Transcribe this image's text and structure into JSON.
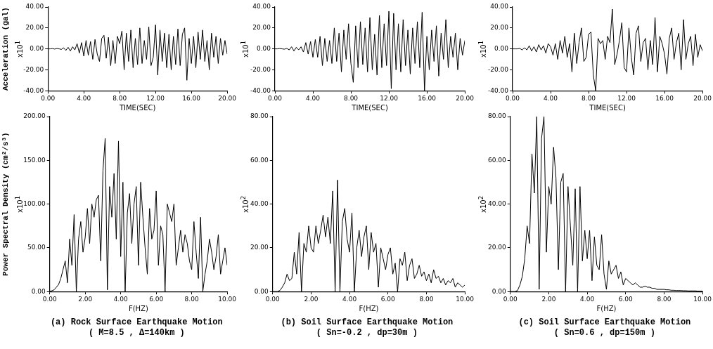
{
  "chart_data": [
    {
      "type": "line",
      "xlabel": "TIME(SEC)",
      "ylabel": "Acceleration (gal)",
      "annotations": [
        "x10$^{1}$"
      ],
      "xlim": [
        0,
        20
      ],
      "ylim": [
        -40,
        40
      ],
      "xticks": [
        {
          "value": 0,
          "label": "0.00"
        },
        {
          "value": 4,
          "label": "4.00"
        },
        {
          "value": 8,
          "label": "8.00"
        },
        {
          "value": 12,
          "label": "12.00"
        },
        {
          "value": 16,
          "label": "16.00"
        },
        {
          "value": 20,
          "label": "20.00"
        }
      ],
      "yticks": [
        {
          "value": -40,
          "label": "-40.00"
        },
        {
          "value": -20,
          "label": "-20.00"
        },
        {
          "value": 0,
          "label": "0.00"
        },
        {
          "value": 20,
          "label": "20.00"
        },
        {
          "value": 40,
          "label": "40.00"
        }
      ],
      "x": [
        0,
        0.25,
        0.5,
        0.75,
        1,
        1.25,
        1.5,
        1.75,
        2,
        2.25,
        2.5,
        2.75,
        3,
        3.25,
        3.5,
        3.75,
        4,
        4.25,
        4.5,
        4.75,
        5,
        5.25,
        5.5,
        5.75,
        6,
        6.25,
        6.5,
        6.75,
        7,
        7.25,
        7.5,
        7.75,
        8,
        8.25,
        8.5,
        8.75,
        9,
        9.25,
        9.5,
        9.75,
        10,
        10.25,
        10.5,
        10.75,
        11,
        11.25,
        11.5,
        11.75,
        12,
        12.25,
        12.5,
        12.75,
        13,
        13.25,
        13.5,
        13.75,
        14,
        14.25,
        14.5,
        14.75,
        15,
        15.25,
        15.5,
        15.75,
        16,
        16.25,
        16.5,
        16.75,
        17,
        17.25,
        17.5,
        17.75,
        18,
        18.25,
        18.5,
        18.75,
        19,
        19.25,
        19.5,
        19.75,
        20
      ],
      "series": [
        {
          "color": "#000000",
          "values": [
            0,
            0,
            0.3,
            -0.2,
            0.4,
            0,
            -0.5,
            1,
            -1.5,
            1.5,
            -2,
            2,
            -1,
            5,
            -4,
            6,
            -7,
            8,
            -6,
            7,
            -10,
            9,
            -5,
            -12,
            10,
            13,
            -9,
            11,
            -16,
            8,
            -14,
            12,
            5,
            17,
            -20,
            15,
            -12,
            18,
            -18,
            10,
            -15,
            20,
            -14,
            8,
            -10,
            21,
            -16,
            -8,
            23,
            -25,
            18,
            -12,
            15,
            -18,
            14,
            -20,
            12,
            -15,
            19,
            -16,
            14,
            20,
            -30,
            10,
            -14,
            12,
            -18,
            16,
            -10,
            18,
            -12,
            8,
            -20,
            15,
            -8,
            12,
            -14,
            10,
            -6,
            8,
            -5
          ]
        }
      ]
    },
    {
      "type": "line",
      "xlabel": "TIME(SEC)",
      "annotations": [
        "x10$^{1}$"
      ],
      "xlim": [
        0,
        20
      ],
      "ylim": [
        -40,
        40
      ],
      "xticks": [
        {
          "value": 0,
          "label": "0.00"
        },
        {
          "value": 4,
          "label": "4.00"
        },
        {
          "value": 8,
          "label": "8.00"
        },
        {
          "value": 12,
          "label": "12.00"
        },
        {
          "value": 16,
          "label": "16.00"
        },
        {
          "value": 20,
          "label": "20.00"
        }
      ],
      "yticks": [
        {
          "value": -40,
          "label": "-40.00"
        },
        {
          "value": -20,
          "label": "-20.00"
        },
        {
          "value": 0,
          "label": "0.00"
        },
        {
          "value": 20,
          "label": "20.00"
        },
        {
          "value": 40,
          "label": "40.00"
        }
      ],
      "x": [
        0,
        0.25,
        0.5,
        0.75,
        1,
        1.25,
        1.5,
        1.75,
        2,
        2.25,
        2.5,
        2.75,
        3,
        3.25,
        3.5,
        3.75,
        4,
        4.25,
        4.5,
        4.75,
        5,
        5.25,
        5.5,
        5.75,
        6,
        6.25,
        6.5,
        6.75,
        7,
        7.25,
        7.5,
        7.75,
        8,
        8.25,
        8.5,
        8.75,
        9,
        9.25,
        9.5,
        9.75,
        10,
        10.25,
        10.5,
        10.75,
        11,
        11.25,
        11.5,
        11.75,
        12,
        12.25,
        12.5,
        12.75,
        13,
        13.25,
        13.5,
        13.75,
        14,
        14.25,
        14.5,
        14.75,
        15,
        15.25,
        15.5,
        15.75,
        16,
        16.25,
        16.5,
        16.75,
        17,
        17.25,
        17.5,
        17.75,
        18,
        18.25,
        18.5,
        18.75,
        19,
        19.25,
        19.5,
        19.75,
        20
      ],
      "series": [
        {
          "color": "#000000",
          "values": [
            0,
            0,
            0.3,
            0,
            -0.3,
            0.5,
            -1,
            2,
            -2,
            1.5,
            -1,
            2,
            -3,
            6,
            -5,
            7,
            -8,
            9,
            -8,
            12,
            -16,
            10,
            -12,
            8,
            -14,
            20,
            -12,
            15,
            -22,
            18,
            -10,
            24,
            -14,
            -32,
            22,
            -18,
            26,
            -15,
            20,
            -22,
            30,
            -20,
            14,
            -25,
            32,
            -18,
            24,
            -16,
            36,
            -38,
            34,
            -20,
            24,
            -22,
            28,
            -16,
            18,
            -24,
            20,
            -14,
            26,
            -18,
            35,
            -40,
            12,
            -20,
            18,
            -12,
            22,
            -26,
            15,
            -10,
            28,
            -18,
            12,
            -8,
            15,
            -20,
            10,
            -6,
            8
          ]
        }
      ]
    },
    {
      "type": "line",
      "xlabel": "TIME(SEC)",
      "annotations": [
        "x10$^{1}$"
      ],
      "xlim": [
        0,
        20
      ],
      "ylim": [
        -40,
        40
      ],
      "xticks": [
        {
          "value": 0,
          "label": "0.00"
        },
        {
          "value": 4,
          "label": "4.00"
        },
        {
          "value": 8,
          "label": "8.00"
        },
        {
          "value": 12,
          "label": "12.00"
        },
        {
          "value": 16,
          "label": "16.00"
        },
        {
          "value": 20,
          "label": "20.00"
        }
      ],
      "yticks": [
        {
          "value": -40,
          "label": "-40.00"
        },
        {
          "value": -20,
          "label": "-20.00"
        },
        {
          "value": 0,
          "label": "0.00"
        },
        {
          "value": 20,
          "label": "20.00"
        },
        {
          "value": 40,
          "label": "40.00"
        }
      ],
      "x": [
        0,
        0.25,
        0.5,
        0.75,
        1,
        1.25,
        1.5,
        1.75,
        2,
        2.25,
        2.5,
        2.75,
        3,
        3.25,
        3.5,
        3.75,
        4,
        4.25,
        4.5,
        4.75,
        5,
        5.25,
        5.5,
        5.75,
        6,
        6.25,
        6.5,
        6.75,
        7,
        7.25,
        7.5,
        7.75,
        8,
        8.25,
        8.5,
        8.75,
        9,
        9.25,
        9.5,
        9.75,
        10,
        10.25,
        10.5,
        10.75,
        11,
        11.25,
        11.5,
        11.75,
        12,
        12.25,
        12.5,
        12.75,
        13,
        13.25,
        13.5,
        13.75,
        14,
        14.25,
        14.5,
        14.75,
        15,
        15.25,
        15.5,
        15.75,
        16,
        16.25,
        16.5,
        16.75,
        17,
        17.25,
        17.5,
        17.75,
        18,
        18.25,
        18.5,
        18.75,
        19,
        19.25,
        19.5,
        19.75,
        20
      ],
      "series": [
        {
          "color": "#000000",
          "values": [
            0,
            0,
            0,
            0.5,
            -1,
            1,
            -1,
            3,
            -2,
            2,
            -3,
            4,
            -1,
            3,
            -4,
            5,
            2,
            -6,
            5,
            -10,
            8,
            -4,
            12,
            -8,
            5,
            -22,
            15,
            -14,
            6,
            20,
            -12,
            -8,
            14,
            16,
            -25,
            -40,
            10,
            5,
            8,
            -10,
            12,
            6,
            38,
            -15,
            -5,
            8,
            25,
            -18,
            -22,
            20,
            -8,
            -25,
            15,
            22,
            -12,
            6,
            10,
            -20,
            8,
            -15,
            30,
            -22,
            12,
            5,
            -5,
            -24,
            10,
            20,
            -10,
            6,
            15,
            -20,
            28,
            -10,
            5,
            12,
            -16,
            14,
            -8,
            4,
            -2
          ]
        }
      ]
    },
    {
      "type": "line",
      "xlabel": "F(HZ)",
      "ylabel": "Power Spectral Density (cm²/s³)",
      "annotations": [
        "x10$^{1}$",
        "(a) Rock Surface Earthquake Motion",
        "( M=8.5 , Δ=140km )"
      ],
      "xlim": [
        0,
        10
      ],
      "ylim": [
        0,
        200
      ],
      "xticks": [
        {
          "value": 0,
          "label": "0.00"
        },
        {
          "value": 2,
          "label": "2.00"
        },
        {
          "value": 4,
          "label": "4.00"
        },
        {
          "value": 6,
          "label": "6.00"
        },
        {
          "value": 8,
          "label": "8.00"
        },
        {
          "value": 10,
          "label": "10.00"
        }
      ],
      "yticks": [
        {
          "value": 0,
          "label": "0.00"
        },
        {
          "value": 50,
          "label": "50.00"
        },
        {
          "value": 100,
          "label": "100.00"
        },
        {
          "value": 150,
          "label": "150.00"
        },
        {
          "value": 200,
          "label": "200.00"
        }
      ],
      "x": [
        0,
        0.125,
        0.25,
        0.375,
        0.5,
        0.625,
        0.75,
        0.875,
        1,
        1.125,
        1.25,
        1.375,
        1.5,
        1.625,
        1.75,
        1.875,
        2,
        2.125,
        2.25,
        2.375,
        2.5,
        2.625,
        2.75,
        2.875,
        3,
        3.125,
        3.25,
        3.375,
        3.5,
        3.625,
        3.75,
        3.875,
        4,
        4.125,
        4.25,
        4.375,
        4.5,
        4.625,
        4.75,
        4.875,
        5,
        5.125,
        5.25,
        5.375,
        5.5,
        5.625,
        5.75,
        5.875,
        6,
        6.125,
        6.25,
        6.375,
        6.5,
        6.625,
        6.75,
        6.875,
        7,
        7.125,
        7.25,
        7.375,
        7.5,
        7.625,
        7.75,
        7.875,
        8,
        8.125,
        8.25,
        8.375,
        8.5,
        8.625,
        8.75,
        8.875,
        9,
        9.125,
        9.25,
        9.375,
        9.5,
        9.625,
        9.75,
        9.875,
        10
      ],
      "series": [
        {
          "color": "#000000",
          "values": [
            0,
            1,
            2,
            5,
            8,
            15,
            25,
            35,
            10,
            60,
            30,
            88,
            0,
            60,
            80,
            45,
            62,
            95,
            55,
            100,
            85,
            105,
            110,
            35,
            138,
            175,
            2,
            120,
            85,
            135,
            60,
            172,
            40,
            125,
            0,
            90,
            112,
            55,
            100,
            120,
            30,
            125,
            85,
            50,
            20,
            95,
            60,
            70,
            115,
            30,
            75,
            65,
            0,
            100,
            90,
            80,
            100,
            30,
            50,
            70,
            45,
            65,
            55,
            35,
            25,
            80,
            45,
            15,
            85,
            0,
            20,
            35,
            60,
            45,
            25,
            40,
            65,
            20,
            35,
            50,
            30
          ]
        }
      ]
    },
    {
      "type": "line",
      "xlabel": "F(HZ)",
      "annotations": [
        "x10$^{2}$",
        "(b) Soil Surface Earthquake Motion",
        "( Sn=-0.2 , dp=30m )"
      ],
      "xlim": [
        0,
        10
      ],
      "ylim": [
        0,
        80
      ],
      "xticks": [
        {
          "value": 0,
          "label": "0.00"
        },
        {
          "value": 2,
          "label": "2.00"
        },
        {
          "value": 4,
          "label": "4.00"
        },
        {
          "value": 6,
          "label": "6.00"
        },
        {
          "value": 8,
          "label": "8.00"
        },
        {
          "value": 10,
          "label": "10.00"
        }
      ],
      "yticks": [
        {
          "value": 0,
          "label": "0.00"
        },
        {
          "value": 20,
          "label": "20.00"
        },
        {
          "value": 40,
          "label": "40.00"
        },
        {
          "value": 60,
          "label": "60.00"
        },
        {
          "value": 80,
          "label": "80.00"
        }
      ],
      "x": [
        0,
        0.125,
        0.25,
        0.375,
        0.5,
        0.625,
        0.75,
        0.875,
        1,
        1.125,
        1.25,
        1.375,
        1.5,
        1.625,
        1.75,
        1.875,
        2,
        2.125,
        2.25,
        2.375,
        2.5,
        2.625,
        2.75,
        2.875,
        3,
        3.125,
        3.25,
        3.375,
        3.5,
        3.625,
        3.75,
        3.875,
        4,
        4.125,
        4.25,
        4.375,
        4.5,
        4.625,
        4.75,
        4.875,
        5,
        5.125,
        5.25,
        5.375,
        5.5,
        5.625,
        5.75,
        5.875,
        6,
        6.125,
        6.25,
        6.375,
        6.5,
        6.625,
        6.75,
        6.875,
        7,
        7.125,
        7.25,
        7.375,
        7.5,
        7.625,
        7.75,
        7.875,
        8,
        8.125,
        8.25,
        8.375,
        8.5,
        8.625,
        8.75,
        8.875,
        9,
        9.125,
        9.25,
        9.375,
        9.5,
        9.625,
        9.75,
        9.875,
        10
      ],
      "series": [
        {
          "color": "#000000",
          "values": [
            0,
            0,
            0,
            0.5,
            2,
            4,
            8,
            5,
            6,
            18,
            8,
            27,
            0,
            22,
            18,
            30,
            20,
            18,
            30,
            22,
            28,
            35,
            25,
            34,
            22,
            46,
            0,
            51,
            0,
            32,
            38,
            24,
            18,
            36,
            0,
            20,
            28,
            16,
            25,
            30,
            10,
            27,
            18,
            22,
            2,
            20,
            15,
            10,
            17,
            20,
            8,
            13,
            0,
            15,
            12,
            18,
            5,
            12,
            15,
            6,
            8,
            12,
            7,
            9,
            5,
            8,
            4,
            10,
            6,
            7,
            4,
            6,
            3,
            5,
            4,
            6,
            2,
            4,
            3,
            2,
            3
          ]
        }
      ]
    },
    {
      "type": "line",
      "xlabel": "F(HZ)",
      "annotations": [
        "x10$^{2}$",
        "(c) Soil Surface Earthquake Motion",
        "( Sn=0.6 , dp=150m )"
      ],
      "xlim": [
        0,
        10
      ],
      "ylim": [
        0,
        80
      ],
      "xticks": [
        {
          "value": 0,
          "label": "0.00"
        },
        {
          "value": 2,
          "label": "2.00"
        },
        {
          "value": 4,
          "label": "4.00"
        },
        {
          "value": 6,
          "label": "6.00"
        },
        {
          "value": 8,
          "label": "8.00"
        },
        {
          "value": 10,
          "label": "10.00"
        }
      ],
      "yticks": [
        {
          "value": 0,
          "label": "0.00"
        },
        {
          "value": 20,
          "label": "20.00"
        },
        {
          "value": 40,
          "label": "40.00"
        },
        {
          "value": 60,
          "label": "60.00"
        },
        {
          "value": 80,
          "label": "80.00"
        }
      ],
      "x": [
        0,
        0.125,
        0.25,
        0.375,
        0.5,
        0.625,
        0.75,
        0.875,
        1,
        1.125,
        1.25,
        1.375,
        1.5,
        1.625,
        1.75,
        1.875,
        2,
        2.125,
        2.25,
        2.375,
        2.5,
        2.625,
        2.75,
        2.875,
        3,
        3.125,
        3.25,
        3.375,
        3.5,
        3.625,
        3.75,
        3.875,
        4,
        4.125,
        4.25,
        4.375,
        4.5,
        4.625,
        4.75,
        4.875,
        5,
        5.125,
        5.25,
        5.375,
        5.5,
        5.625,
        5.75,
        5.875,
        6,
        6.125,
        6.25,
        6.375,
        6.5,
        6.625,
        6.75,
        6.875,
        7,
        7.125,
        7.25,
        7.375,
        7.5,
        7.625,
        7.75,
        7.875,
        8,
        8.125,
        8.25,
        8.375,
        8.5,
        8.625,
        8.75,
        8.875,
        9,
        9.125,
        9.25,
        9.375,
        9.5,
        9.625,
        9.75,
        9.875,
        10
      ],
      "series": [
        {
          "color": "#000000",
          "values": [
            0,
            0,
            0,
            0.5,
            3,
            7,
            15,
            30,
            22,
            63,
            45,
            80,
            1,
            70,
            80,
            18,
            48,
            40,
            66,
            52,
            10,
            50,
            54,
            0,
            48,
            30,
            12,
            47,
            0,
            48,
            14,
            28,
            15,
            28,
            5,
            25,
            12,
            10,
            26,
            8,
            1,
            14,
            8,
            10,
            12,
            6,
            9,
            3,
            6,
            5,
            4,
            3,
            4,
            3,
            2,
            2,
            2.5,
            2,
            2,
            1.5,
            1.5,
            1,
            1,
            1,
            1,
            0.8,
            0.8,
            0.6,
            0.6,
            0.5,
            0.5,
            0.5,
            0.4,
            0.4,
            0.3,
            0.3,
            0.3,
            0.3,
            0.2,
            0.2,
            0.2
          ]
        }
      ]
    }
  ]
}
